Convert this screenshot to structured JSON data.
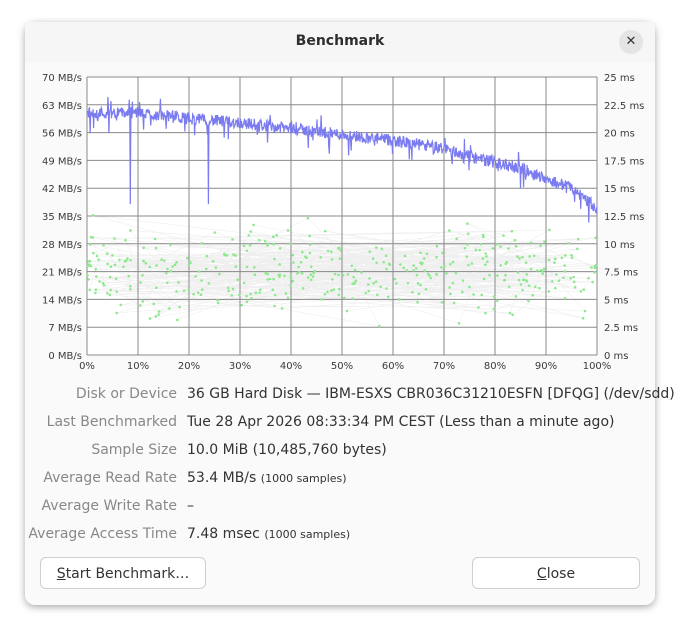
{
  "window": {
    "title": "Benchmark",
    "close_icon": "close-icon"
  },
  "chart_data": {
    "type": "line",
    "x_axis": {
      "ticks": [
        "0%",
        "10%",
        "20%",
        "30%",
        "40%",
        "50%",
        "60%",
        "70%",
        "80%",
        "90%",
        "100%"
      ],
      "range": [
        0,
        100
      ]
    },
    "y_left": {
      "ticks": [
        "0 MB/s",
        "7 MB/s",
        "14 MB/s",
        "21 MB/s",
        "28 MB/s",
        "35 MB/s",
        "42 MB/s",
        "49 MB/s",
        "56 MB/s",
        "63 MB/s",
        "70 MB/s"
      ],
      "range": [
        0,
        70
      ]
    },
    "y_right": {
      "ticks": [
        "0 ms",
        "2.5 ms",
        "5 ms",
        "7.5 ms",
        "10 ms",
        "12.5 ms",
        "15 ms",
        "17.5 ms",
        "20 ms",
        "22.5 ms",
        "25 ms"
      ],
      "range": [
        0,
        25
      ]
    },
    "grid": true,
    "series": [
      {
        "kind": "read-rate",
        "color": "#7b7bf0",
        "axis": "left",
        "trend_x": [
          0,
          10,
          20,
          30,
          40,
          50,
          60,
          65,
          70,
          75,
          80,
          85,
          90,
          95,
          100
        ],
        "trend_y": [
          61,
          61,
          59.5,
          58.5,
          57,
          55.5,
          54,
          53,
          52,
          50,
          48.5,
          47,
          44.5,
          42,
          37
        ],
        "dips": [
          {
            "x": 8.5,
            "y": 38
          },
          {
            "x": 23.8,
            "y": 38
          }
        ]
      },
      {
        "kind": "access-time",
        "color": "#8ee88e",
        "axis": "right",
        "mean_ms": 7.48,
        "range_ms": [
          2,
          13
        ]
      }
    ]
  },
  "info": [
    {
      "label": "Disk or Device",
      "value": "36 GB Hard Disk — IBM-ESXS CBR036C31210ESFN [DFQG] (/dev/sdd)",
      "note": ""
    },
    {
      "label": "Last Benchmarked",
      "value": "Tue 28 Apr 2026 08:33:34 PM CEST (Less than a minute ago)",
      "note": ""
    },
    {
      "label": "Sample Size",
      "value": "10.0 MiB (10,485,760 bytes)",
      "note": ""
    },
    {
      "label": "Average Read Rate",
      "value": "53.4 MB/s",
      "note": "(1000 samples)"
    },
    {
      "label": "Average Write Rate",
      "value": "–",
      "note": ""
    },
    {
      "label": "Average Access Time",
      "value": "7.48 msec",
      "note": "(1000 samples)"
    }
  ],
  "buttons": {
    "start_mnemonic": "S",
    "start_rest": "tart Benchmark…",
    "close_mnemonic": "C",
    "close_rest": "lose"
  }
}
